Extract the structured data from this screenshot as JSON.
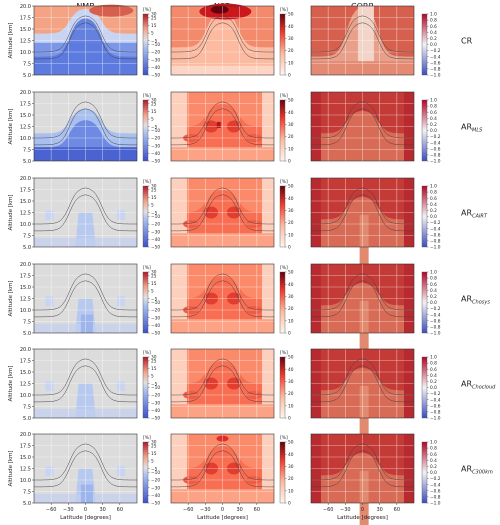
{
  "columns": [
    "NMB",
    "NSD",
    "CORR"
  ],
  "rows": [
    {
      "base": "CR",
      "sub": ""
    },
    {
      "base": "AR",
      "sub": "MLS"
    },
    {
      "base": "AR",
      "sub": "CAIRT"
    },
    {
      "base": "AR",
      "sub": "Chosys"
    },
    {
      "base": "AR",
      "sub": "Chocloud"
    },
    {
      "base": "AR",
      "sub": "C300km"
    }
  ],
  "axes": {
    "ylabel": "Altitude [km]",
    "xlabel": "Latitude [degrees]",
    "yticks": [
      "5.0",
      "7.5",
      "10.0",
      "12.5",
      "15.0",
      "17.5",
      "20.0"
    ],
    "xticks": [
      "−60",
      "−30",
      "0",
      "30",
      "60"
    ]
  },
  "colorbars": {
    "NMB": {
      "unit": "[%]",
      "ticks": [
        "30",
        "25",
        "15",
        "5",
        "−5",
        "−10",
        "−20",
        "−30",
        "−40",
        "−50"
      ]
    },
    "NSD": {
      "unit": "[%]",
      "ticks": [
        "50",
        "40",
        "30",
        "20",
        "10",
        "0"
      ]
    },
    "CORR": {
      "unit": "",
      "ticks": [
        "1.0",
        "0.8",
        "0.6",
        "0.4",
        "0.2",
        "0.0",
        "−0.2",
        "−0.4",
        "−0.6",
        "−0.8",
        "−1.0"
      ]
    }
  },
  "chart_data": {
    "type": "heatmap",
    "description_units": "NMB and NSD in percent, CORR dimensionless",
    "panels": [
      {
        "row": "CR",
        "NMB_range": [
          -50,
          30
        ],
        "NSD_range": [
          0,
          50
        ],
        "CORR_range": [
          -1,
          1
        ]
      },
      {
        "row": "AR_MLS",
        "NMB_range": [
          -50,
          30
        ],
        "NSD_range": [
          0,
          50
        ],
        "CORR_range": [
          -1,
          1
        ]
      },
      {
        "row": "AR_CAIRT",
        "NMB_range": [
          -50,
          30
        ],
        "NSD_range": [
          0,
          50
        ],
        "CORR_range": [
          -1,
          1
        ]
      },
      {
        "row": "AR_Chosys",
        "NMB_range": [
          -50,
          30
        ],
        "NSD_range": [
          0,
          50
        ],
        "CORR_range": [
          -1,
          1
        ]
      },
      {
        "row": "AR_Chocloud",
        "NMB_range": [
          -50,
          30
        ],
        "NSD_range": [
          0,
          50
        ],
        "CORR_range": [
          -1,
          1
        ]
      },
      {
        "row": "AR_C300km",
        "NMB_range": [
          -50,
          30
        ],
        "NSD_range": [
          0,
          50
        ],
        "CORR_range": [
          -1,
          1
        ]
      }
    ],
    "x_range": [
      -90,
      90
    ],
    "y_range": [
      5,
      20
    ],
    "grid": true
  }
}
